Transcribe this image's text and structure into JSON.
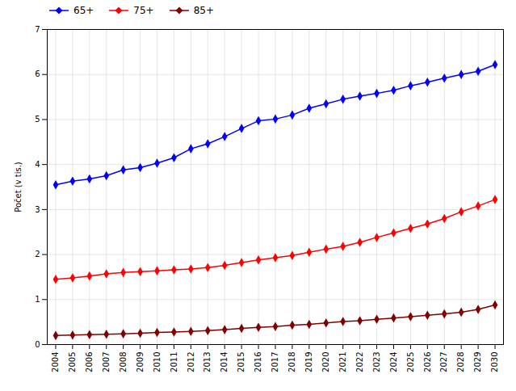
{
  "chart_data": {
    "type": "line",
    "x": [
      2004,
      2005,
      2006,
      2007,
      2008,
      2009,
      2010,
      2011,
      2012,
      2013,
      2014,
      2015,
      2016,
      2017,
      2018,
      2019,
      2020,
      2021,
      2022,
      2023,
      2024,
      2025,
      2026,
      2027,
      2028,
      2029,
      2030
    ],
    "series": [
      {
        "name": "65+",
        "color": "#0000FF",
        "values": [
          3.55,
          3.63,
          3.68,
          3.75,
          3.88,
          3.93,
          4.03,
          4.15,
          4.35,
          4.46,
          4.62,
          4.8,
          4.97,
          5.01,
          5.1,
          5.25,
          5.35,
          5.45,
          5.52,
          5.58,
          5.65,
          5.75,
          5.83,
          5.92,
          6.0,
          6.07,
          6.22
        ]
      },
      {
        "name": "75+",
        "color": "#FF0000",
        "values": [
          1.45,
          1.48,
          1.52,
          1.57,
          1.6,
          1.62,
          1.64,
          1.66,
          1.68,
          1.71,
          1.76,
          1.82,
          1.88,
          1.93,
          1.98,
          2.05,
          2.12,
          2.18,
          2.27,
          2.38,
          2.48,
          2.58,
          2.68,
          2.8,
          2.95,
          3.08,
          3.22
        ]
      },
      {
        "name": "85+",
        "color": "#800000",
        "values": [
          0.2,
          0.21,
          0.22,
          0.23,
          0.24,
          0.25,
          0.27,
          0.28,
          0.29,
          0.31,
          0.33,
          0.36,
          0.38,
          0.4,
          0.43,
          0.45,
          0.48,
          0.51,
          0.53,
          0.56,
          0.59,
          0.62,
          0.65,
          0.68,
          0.72,
          0.78,
          0.88
        ]
      }
    ],
    "ylabel": "Počet (v tis.)",
    "ylim": [
      0,
      7
    ],
    "yticks": [
      0,
      1,
      2,
      3,
      4,
      5,
      6,
      7
    ],
    "xlim": [
      2003.5,
      2030.5
    ],
    "xticks": [
      2004,
      2005,
      2006,
      2007,
      2008,
      2009,
      2010,
      2011,
      2012,
      2013,
      2014,
      2015,
      2016,
      2017,
      2018,
      2019,
      2020,
      2021,
      2022,
      2023,
      2024,
      2025,
      2026,
      2027,
      2028,
      2029,
      2030
    ],
    "grid": true,
    "legend": "upper left",
    "marker": "diamond"
  }
}
